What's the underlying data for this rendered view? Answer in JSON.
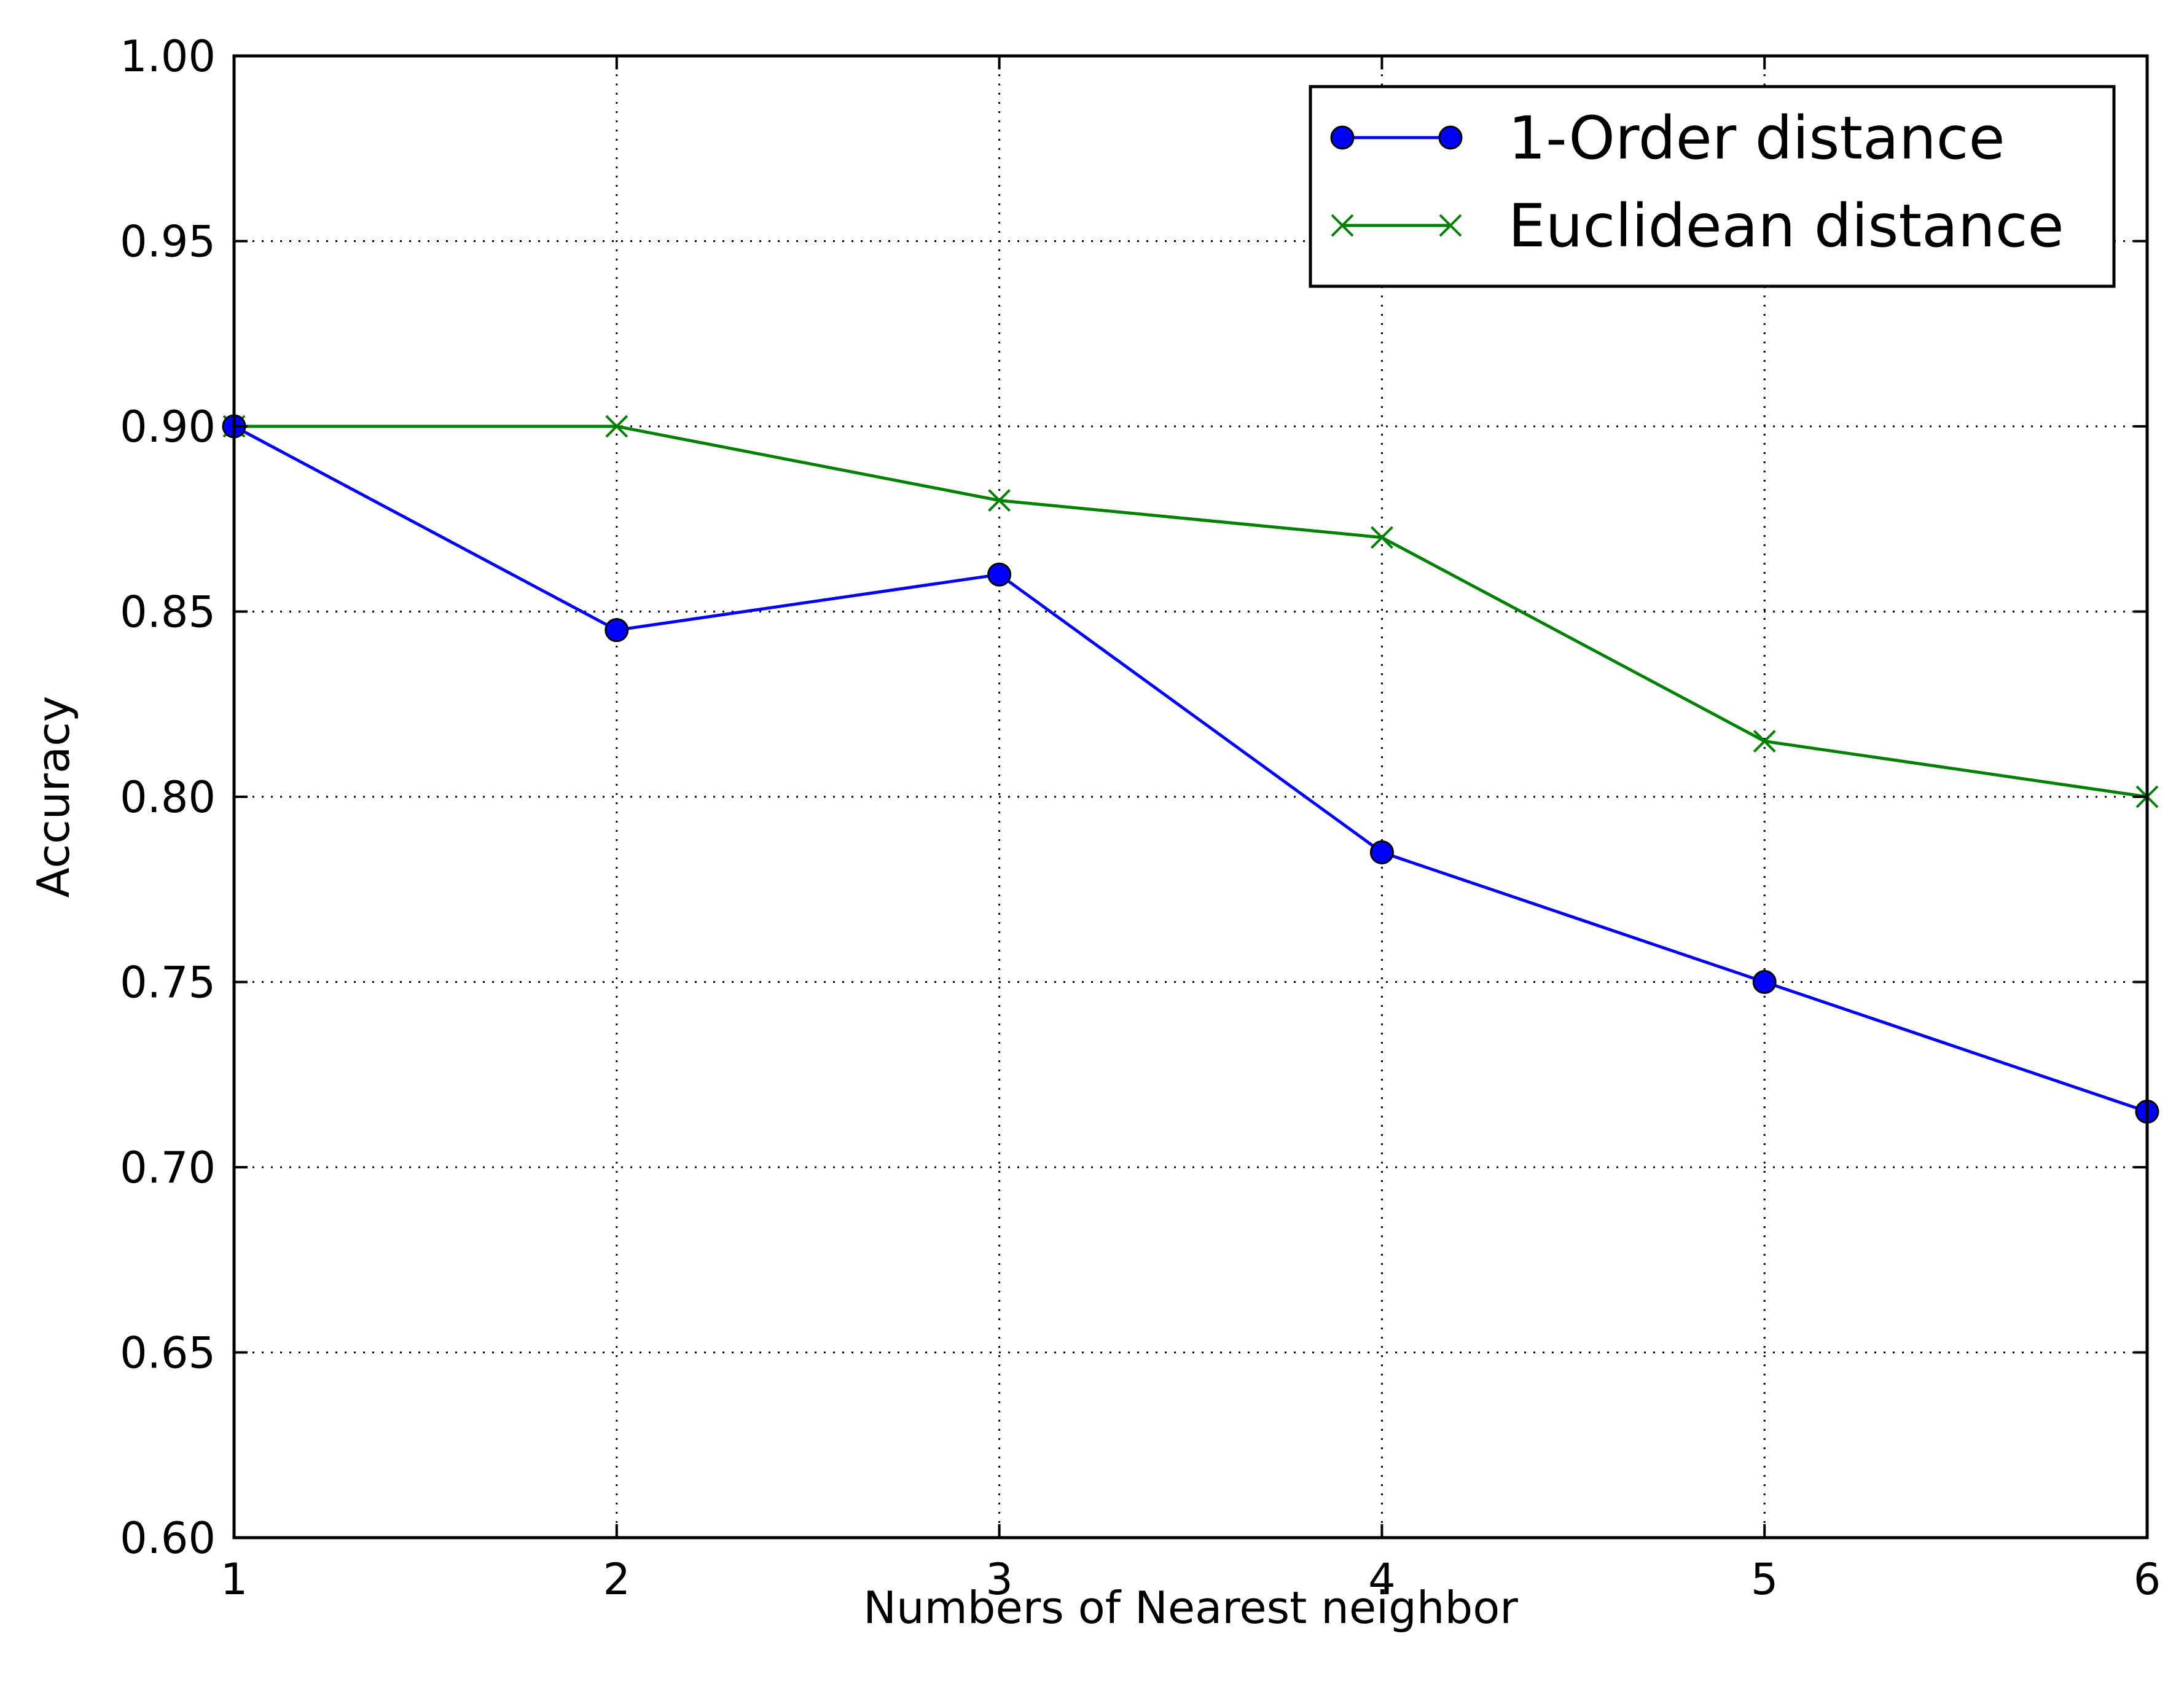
{
  "chart_data": {
    "type": "line",
    "xlabel": "Numbers of Nearest neighbor",
    "ylabel": "Accuracy",
    "xlim": [
      1,
      6
    ],
    "ylim": [
      0.6,
      1.0
    ],
    "x_ticks": [
      1,
      2,
      3,
      4,
      5,
      6
    ],
    "x_tick_labels": [
      "1",
      "2",
      "3",
      "4",
      "5",
      "6"
    ],
    "y_ticks": [
      0.6,
      0.65,
      0.7,
      0.75,
      0.8,
      0.85,
      0.9,
      0.95,
      1.0
    ],
    "y_tick_labels": [
      "0.60",
      "0.65",
      "0.70",
      "0.75",
      "0.80",
      "0.85",
      "0.90",
      "0.95",
      "1.00"
    ],
    "grid": true,
    "legend_position": "top-right",
    "x": [
      1,
      2,
      3,
      4,
      5,
      6
    ],
    "series": [
      {
        "name": "1-Order distance",
        "values": [
          0.9,
          0.845,
          0.86,
          0.785,
          0.75,
          0.715
        ],
        "color": "#0000ff",
        "marker": "circle"
      },
      {
        "name": "Euclidean distance",
        "values": [
          0.9,
          0.9,
          0.88,
          0.87,
          0.815,
          0.8
        ],
        "color": "#008000",
        "marker": "x"
      }
    ]
  }
}
